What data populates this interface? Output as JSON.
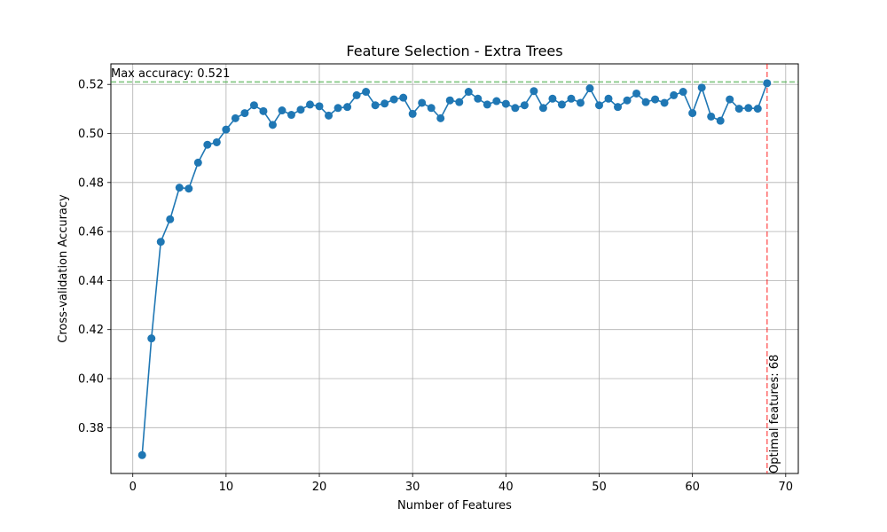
{
  "chart_data": {
    "type": "line",
    "title": "Feature Selection - Extra Trees",
    "xlabel": "Number of Features",
    "ylabel": "Cross-validation Accuracy",
    "xlim": [
      -2.35,
      71.35
    ],
    "ylim": [
      0.3613,
      0.5284
    ],
    "grid": true,
    "xticks": [
      0,
      10,
      20,
      30,
      40,
      50,
      60,
      70
    ],
    "xtick_labels": [
      "0",
      "10",
      "20",
      "30",
      "40",
      "50",
      "60",
      "70"
    ],
    "yticks": [
      0.38,
      0.4,
      0.42,
      0.44,
      0.46,
      0.48,
      0.5,
      0.52
    ],
    "ytick_labels": [
      "0.38",
      "0.40",
      "0.42",
      "0.44",
      "0.46",
      "0.48",
      "0.50",
      "0.52"
    ],
    "series": [
      {
        "color": "#1f77b4",
        "marker": "circle",
        "x": [
          1,
          2,
          3,
          4,
          5,
          6,
          7,
          8,
          9,
          10,
          11,
          12,
          13,
          14,
          15,
          16,
          17,
          18,
          19,
          20,
          21,
          22,
          23,
          24,
          25,
          26,
          27,
          28,
          29,
          30,
          31,
          32,
          33,
          34,
          35,
          36,
          37,
          38,
          39,
          40,
          41,
          42,
          43,
          44,
          45,
          46,
          47,
          48,
          49,
          50,
          51,
          52,
          53,
          54,
          55,
          56,
          57,
          58,
          59,
          60,
          61,
          62,
          63,
          64,
          65,
          66,
          67,
          68
        ],
        "y": [
          0.3688,
          0.4164,
          0.4558,
          0.465,
          0.4779,
          0.4775,
          0.4881,
          0.4954,
          0.4964,
          0.5016,
          0.5062,
          0.5083,
          0.5115,
          0.5091,
          0.5035,
          0.5094,
          0.5076,
          0.5097,
          0.5118,
          0.5111,
          0.5073,
          0.5104,
          0.5108,
          0.5156,
          0.517,
          0.5115,
          0.5122,
          0.5139,
          0.5146,
          0.508,
          0.5125,
          0.5104,
          0.5062,
          0.5135,
          0.5128,
          0.517,
          0.5142,
          0.5118,
          0.5132,
          0.5121,
          0.5104,
          0.5115,
          0.5173,
          0.5104,
          0.5142,
          0.5118,
          0.5142,
          0.5125,
          0.5184,
          0.5115,
          0.5142,
          0.5108,
          0.5135,
          0.5163,
          0.5128,
          0.5139,
          0.5125,
          0.5156,
          0.517,
          0.5083,
          0.5187,
          0.5069,
          0.5052,
          0.5139,
          0.5101,
          0.5104,
          0.5101,
          0.5205
        ]
      }
    ],
    "hline": {
      "y": 0.521,
      "color": "#2ca02c",
      "style": "dashed",
      "label": "Max accuracy: 0.521"
    },
    "vline": {
      "x": 68,
      "color": "#ff0000",
      "style": "dashed",
      "label": "Optimal features: 68"
    }
  }
}
